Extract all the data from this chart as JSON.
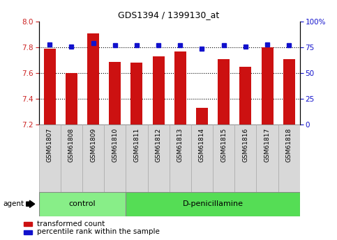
{
  "title": "GDS1394 / 1399130_at",
  "samples": [
    "GSM61807",
    "GSM61808",
    "GSM61809",
    "GSM61810",
    "GSM61811",
    "GSM61812",
    "GSM61813",
    "GSM61814",
    "GSM61815",
    "GSM61816",
    "GSM61817",
    "GSM61818"
  ],
  "bar_values": [
    7.79,
    7.6,
    7.91,
    7.69,
    7.68,
    7.73,
    7.77,
    7.33,
    7.71,
    7.65,
    7.8,
    7.71
  ],
  "percentile_values": [
    78,
    76,
    79,
    77,
    77,
    77,
    77,
    74,
    77,
    76,
    78,
    77
  ],
  "bar_color": "#cc1111",
  "percentile_color": "#1111cc",
  "ylim_left": [
    7.2,
    8.0
  ],
  "ylim_right": [
    0,
    100
  ],
  "yticks_left": [
    7.2,
    7.4,
    7.6,
    7.8,
    8.0
  ],
  "yticks_right": [
    0,
    25,
    50,
    75,
    100
  ],
  "ytick_labels_right": [
    "0",
    "25",
    "50",
    "75",
    "100%"
  ],
  "groups": [
    {
      "label": "control",
      "start": 0,
      "end": 4,
      "color": "#88ee88"
    },
    {
      "label": "D-penicillamine",
      "start": 4,
      "end": 12,
      "color": "#55dd55"
    }
  ],
  "agent_label": "agent",
  "legend_items": [
    {
      "label": "transformed count",
      "color": "#cc1111"
    },
    {
      "label": "percentile rank within the sample",
      "color": "#1111cc"
    }
  ],
  "bar_bottom": 7.2,
  "bar_width": 0.55,
  "dotted_lines": [
    7.8,
    7.6,
    7.4
  ],
  "tick_bg": "#d8d8d8",
  "plot_bg": "#ffffff"
}
